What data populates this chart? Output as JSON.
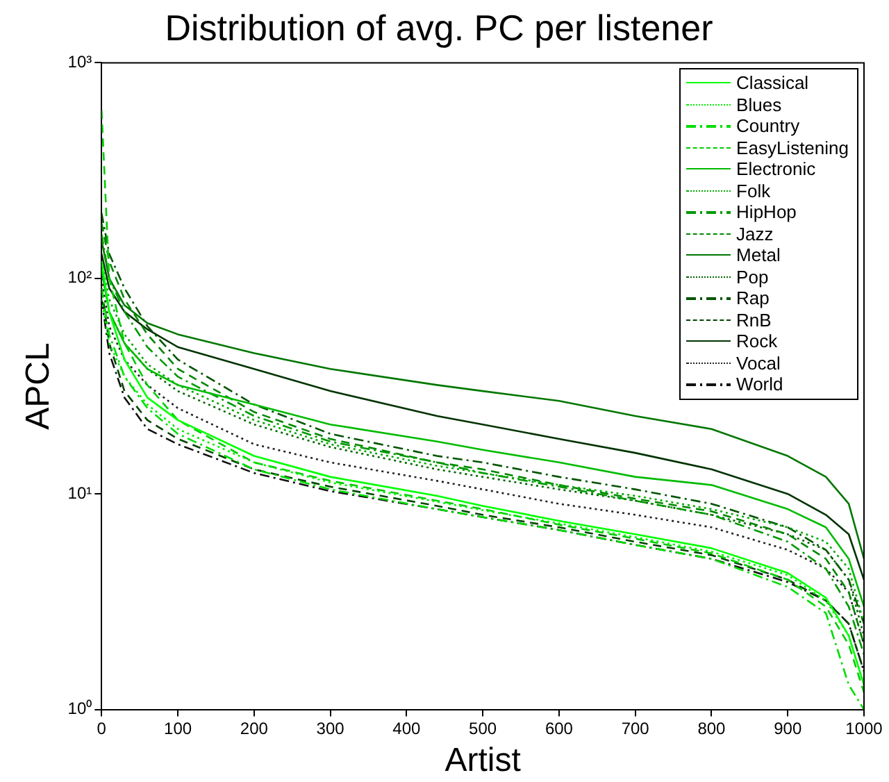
{
  "chart_data": {
    "type": "line",
    "title": "Distribution of avg. PC per listener",
    "xlabel": "Artist",
    "ylabel": "APCL",
    "x": [
      0,
      10,
      30,
      60,
      100,
      200,
      300,
      440,
      500,
      600,
      700,
      800,
      900,
      950,
      980,
      1000
    ],
    "xlim": [
      0,
      1000
    ],
    "xticks": [
      0,
      100,
      200,
      300,
      400,
      500,
      600,
      700,
      800,
      900,
      1000
    ],
    "ylim": [
      1,
      1000
    ],
    "yticks": [
      {
        "value": 1,
        "label": "10⁰"
      },
      {
        "value": 10,
        "label": "10¹"
      },
      {
        "value": 100,
        "label": "10²"
      },
      {
        "value": 1000,
        "label": "10³"
      }
    ],
    "log": "y",
    "grid": false,
    "legend": "top right",
    "marker": "none",
    "series": [
      {
        "name": "Classical",
        "color": "#00ff00",
        "line_style": "solid",
        "values": [
          120,
          70,
          42,
          28,
          22,
          15,
          12,
          9.8,
          8.8,
          7.5,
          6.5,
          5.6,
          4.3,
          3.3,
          2.2,
          1.3
        ]
      },
      {
        "name": "Blues",
        "color": "#00ee00",
        "line_style": "dotted",
        "values": [
          80,
          50,
          35,
          26,
          20,
          14,
          11.3,
          9.2,
          8.4,
          7.3,
          6.3,
          5.4,
          4.2,
          3.2,
          2.2,
          1.3
        ]
      },
      {
        "name": "Country",
        "color": "#00dd00",
        "line_style": "dashdot",
        "values": [
          90,
          55,
          35,
          25,
          19,
          13,
          10.5,
          8.5,
          7.8,
          6.8,
          5.8,
          5,
          3.7,
          2.8,
          1.3,
          1
        ]
      },
      {
        "name": "EasyListening",
        "color": "#00cc00",
        "line_style": "dashed",
        "values": [
          600,
          100,
          50,
          32,
          22,
          14,
          11.5,
          9.3,
          8.5,
          7.2,
          6.2,
          5.3,
          4,
          3,
          2,
          1.2
        ]
      },
      {
        "name": "Electronic",
        "color": "#00bb00",
        "line_style": "solid",
        "values": [
          110,
          70,
          50,
          38,
          32,
          26,
          21,
          17.5,
          16,
          14,
          12,
          11,
          8.5,
          7,
          5,
          3
        ]
      },
      {
        "name": "Folk",
        "color": "#00aa00",
        "line_style": "dotted",
        "values": [
          120,
          80,
          55,
          40,
          32,
          22,
          17,
          13.5,
          12.5,
          11,
          9.8,
          8.5,
          7,
          6,
          4.5,
          2.5
        ]
      },
      {
        "name": "HipHop",
        "color": "#009900",
        "line_style": "dashdot",
        "values": [
          160,
          100,
          70,
          48,
          35,
          23,
          17.5,
          14,
          12.5,
          10.8,
          9.3,
          8,
          6,
          4.5,
          3,
          1.8
        ]
      },
      {
        "name": "Jazz",
        "color": "#008800",
        "line_style": "dashed",
        "values": [
          180,
          120,
          80,
          55,
          38,
          24,
          18,
          14,
          13,
          11,
          9.5,
          8.3,
          6.5,
          5,
          3.5,
          2
        ]
      },
      {
        "name": "Metal",
        "color": "#007700",
        "line_style": "solid",
        "values": [
          150,
          100,
          75,
          62,
          55,
          45,
          38,
          32,
          30,
          27,
          23,
          20,
          15,
          12,
          9,
          5
        ]
      },
      {
        "name": "Pop",
        "color": "#006600",
        "line_style": "dotted",
        "values": [
          110,
          70,
          50,
          38,
          30,
          21,
          16.5,
          13,
          12,
          10.5,
          9.3,
          8,
          6.5,
          5.5,
          4,
          2.2
        ]
      },
      {
        "name": "Rap",
        "color": "#005500",
        "line_style": "dashdot",
        "values": [
          200,
          130,
          90,
          60,
          42,
          26,
          19,
          15,
          14,
          12,
          10.5,
          9,
          7,
          5.5,
          4,
          2.5
        ]
      },
      {
        "name": "RnB",
        "color": "#004400",
        "line_style": "dashed",
        "values": [
          90,
          50,
          30,
          22,
          18,
          13,
          10.8,
          8.8,
          8,
          7,
          6,
          5.2,
          4,
          3.2,
          2.5,
          1.5
        ]
      },
      {
        "name": "Rock",
        "color": "#003300",
        "line_style": "solid",
        "values": [
          130,
          90,
          70,
          58,
          48,
          38,
          30,
          23,
          21,
          18,
          15.5,
          13,
          10,
          8,
          6.5,
          4
        ]
      },
      {
        "name": "Vocal",
        "color": "#222222",
        "line_style": "dotted",
        "values": [
          100,
          60,
          42,
          32,
          25,
          17,
          14,
          11.5,
          10.5,
          9,
          8,
          7,
          5.5,
          4.5,
          3.5,
          2
        ]
      },
      {
        "name": "World",
        "color": "#111111",
        "line_style": "dashdot",
        "values": [
          80,
          45,
          28,
          20,
          17,
          12.5,
          10.3,
          8.5,
          7.8,
          6.8,
          5.8,
          5,
          3.9,
          3.2,
          2.5,
          1.5
        ]
      }
    ]
  }
}
